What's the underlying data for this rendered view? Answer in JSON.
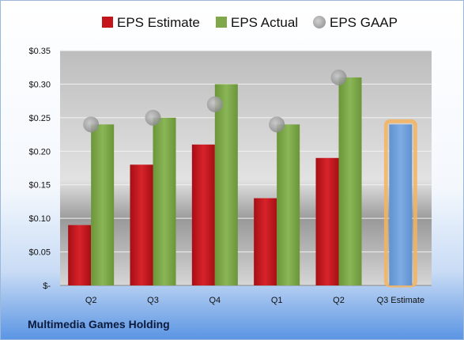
{
  "company": "Multimedia Games Holding",
  "chart_data": {
    "type": "bar",
    "categories": [
      "Q2",
      "Q3",
      "Q4",
      "Q1",
      "Q2",
      "Q3 Estimate"
    ],
    "series": [
      {
        "name": "EPS Estimate",
        "values": [
          0.09,
          0.18,
          0.21,
          0.13,
          0.19,
          null
        ],
        "color": "#c4151b"
      },
      {
        "name": "EPS Actual",
        "values": [
          0.24,
          0.25,
          0.3,
          0.24,
          0.31,
          0.24
        ],
        "color": "#7ea84a",
        "highlight_color": "#6f9fd8"
      },
      {
        "name": "EPS GAAP",
        "values": [
          0.24,
          0.25,
          0.27,
          0.24,
          0.31,
          null
        ],
        "color": "#a6a6a6",
        "marker": "circle"
      }
    ],
    "y_ticks": [
      "$-",
      "$0.05",
      "$0.10",
      "$0.15",
      "$0.20",
      "$0.25",
      "$0.30",
      "$0.35"
    ],
    "ylim": [
      0,
      0.35
    ],
    "grid": true,
    "legend_position": "top",
    "title": "",
    "xlabel": "",
    "ylabel": ""
  }
}
